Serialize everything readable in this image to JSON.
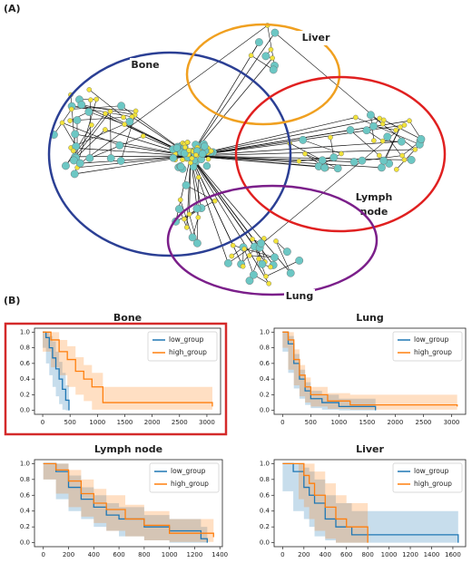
{
  "panel_labels": [
    "(A)",
    "(B)"
  ],
  "network": {
    "regions": [
      {
        "label": "Bone",
        "color": "#2b3f94"
      },
      {
        "label": "Liver",
        "color": "#f0a020"
      },
      {
        "label": [
          "Lymph",
          "node"
        ],
        "color": "#e02020"
      },
      {
        "label": "Lung",
        "color": "#7b1f8a"
      }
    ]
  },
  "chart_data": [
    {
      "type": "line",
      "title": "Bone",
      "highlight": true,
      "legend": "upper right",
      "xlim": [
        -150,
        3250
      ],
      "xticks": [
        0,
        500,
        1000,
        1500,
        2000,
        2500,
        3000
      ],
      "ylim": [
        -0.05,
        1.05
      ],
      "yticks": [
        {
          "value": 0,
          "label": "0.0"
        },
        0.2,
        0.4,
        0.6,
        0.8,
        {
          "value": 1,
          "label": "1.0"
        }
      ],
      "series": [
        {
          "name": "low_group",
          "color": "#1f77b4",
          "x": [
            0,
            60,
            120,
            180,
            240,
            300,
            360,
            420,
            480
          ],
          "values": [
            1,
            0.93,
            0.8,
            0.67,
            0.53,
            0.4,
            0.27,
            0.13,
            0
          ],
          "lower": [
            1,
            0.8,
            0.6,
            0.45,
            0.3,
            0.18,
            0.08,
            0.01,
            0
          ],
          "upper": [
            1,
            1,
            0.95,
            0.88,
            0.75,
            0.62,
            0.48,
            0.32,
            0.05
          ]
        },
        {
          "name": "high_group",
          "color": "#ff7f0e",
          "x": [
            0,
            150,
            300,
            450,
            600,
            750,
            900,
            1100,
            3100
          ],
          "values": [
            1,
            0.9,
            0.75,
            0.65,
            0.5,
            0.4,
            0.3,
            0.1,
            0.05
          ],
          "lower": [
            1,
            0.75,
            0.55,
            0.45,
            0.3,
            0.2,
            0.12,
            0.01,
            0.01
          ],
          "upper": [
            1,
            1,
            0.9,
            0.82,
            0.68,
            0.58,
            0.48,
            0.3,
            0.3
          ]
        }
      ]
    },
    {
      "type": "line",
      "title": "Lung",
      "highlight": false,
      "legend": "upper right",
      "xlim": [
        -150,
        3250
      ],
      "xticks": [
        0,
        500,
        1000,
        1500,
        2000,
        2500,
        3000
      ],
      "ylim": [
        -0.05,
        1.05
      ],
      "yticks": [
        {
          "value": 0,
          "label": "0.0"
        },
        0.2,
        0.4,
        0.6,
        0.8,
        {
          "value": 1,
          "label": "1.0"
        }
      ],
      "series": [
        {
          "name": "low_group",
          "color": "#1f77b4",
          "x": [
            0,
            100,
            200,
            300,
            400,
            500,
            700,
            1000,
            1650
          ],
          "values": [
            1,
            0.85,
            0.6,
            0.4,
            0.25,
            0.15,
            0.1,
            0.05,
            0
          ],
          "lower": [
            1,
            0.75,
            0.48,
            0.28,
            0.15,
            0.07,
            0.03,
            0.01,
            0
          ],
          "upper": [
            1,
            0.95,
            0.72,
            0.52,
            0.36,
            0.25,
            0.2,
            0.15,
            0.15
          ]
        },
        {
          "name": "high_group",
          "color": "#ff7f0e",
          "x": [
            0,
            100,
            200,
            300,
            400,
            500,
            800,
            1200,
            3100
          ],
          "values": [
            1,
            0.9,
            0.65,
            0.45,
            0.3,
            0.2,
            0.12,
            0.07,
            0.05
          ],
          "lower": [
            1,
            0.8,
            0.52,
            0.32,
            0.18,
            0.1,
            0.05,
            0.02,
            0.01
          ],
          "upper": [
            1,
            1,
            0.78,
            0.58,
            0.42,
            0.3,
            0.22,
            0.2,
            0.2
          ]
        }
      ]
    },
    {
      "type": "line",
      "title": "Lymph node",
      "highlight": false,
      "legend": "upper right",
      "xlim": [
        -70,
        1420
      ],
      "xticks": [
        0,
        200,
        400,
        600,
        800,
        1000,
        1200,
        1400
      ],
      "ylim": [
        -0.05,
        1.05
      ],
      "yticks": [
        {
          "value": 0,
          "label": "0.0"
        },
        0.2,
        0.4,
        0.6,
        0.8,
        {
          "value": 1,
          "label": "1.0"
        }
      ],
      "series": [
        {
          "name": "low_group",
          "color": "#1f77b4",
          "x": [
            0,
            100,
            200,
            300,
            400,
            500,
            600,
            800,
            1000,
            1250,
            1300
          ],
          "values": [
            1,
            0.9,
            0.7,
            0.55,
            0.45,
            0.35,
            0.3,
            0.2,
            0.15,
            0.05,
            0
          ],
          "lower": [
            1,
            0.8,
            0.55,
            0.4,
            0.3,
            0.2,
            0.15,
            0.08,
            0.03,
            0,
            0
          ],
          "upper": [
            1,
            1,
            0.85,
            0.7,
            0.6,
            0.5,
            0.45,
            0.35,
            0.3,
            0.2,
            0.15
          ]
        },
        {
          "name": "high_group",
          "color": "#ff7f0e",
          "x": [
            0,
            100,
            200,
            300,
            400,
            500,
            650,
            800,
            1000,
            1350
          ],
          "values": [
            1,
            0.92,
            0.78,
            0.62,
            0.5,
            0.42,
            0.3,
            0.22,
            0.12,
            0.07
          ],
          "lower": [
            1,
            0.8,
            0.62,
            0.45,
            0.33,
            0.25,
            0.15,
            0.08,
            0.03,
            0.01
          ],
          "upper": [
            1,
            1,
            0.92,
            0.8,
            0.68,
            0.6,
            0.48,
            0.4,
            0.3,
            0.25
          ]
        }
      ]
    },
    {
      "type": "line",
      "title": "Liver",
      "highlight": false,
      "legend": "upper right",
      "xlim": [
        -80,
        1720
      ],
      "xticks": [
        0,
        200,
        400,
        600,
        800,
        1000,
        1200,
        1400,
        1600
      ],
      "ylim": [
        -0.05,
        1.05
      ],
      "yticks": [
        {
          "value": 0,
          "label": "0.0"
        },
        0.2,
        0.4,
        0.6,
        0.8,
        {
          "value": 1,
          "label": "1.0"
        }
      ],
      "series": [
        {
          "name": "low_group",
          "color": "#1f77b4",
          "x": [
            0,
            100,
            200,
            250,
            300,
            400,
            500,
            650,
            1650
          ],
          "values": [
            1,
            0.9,
            0.7,
            0.6,
            0.5,
            0.3,
            0.2,
            0.1,
            0
          ],
          "lower": [
            1,
            0.65,
            0.4,
            0.3,
            0.2,
            0.08,
            0.03,
            0,
            0
          ],
          "upper": [
            1,
            1,
            0.95,
            0.9,
            0.8,
            0.6,
            0.5,
            0.4,
            0.4
          ]
        },
        {
          "name": "high_group",
          "color": "#ff7f0e",
          "x": [
            0,
            150,
            200,
            250,
            300,
            400,
            500,
            600,
            800
          ],
          "values": [
            1,
            1,
            0.85,
            0.75,
            0.6,
            0.45,
            0.3,
            0.2,
            0
          ],
          "lower": [
            1,
            1,
            0.55,
            0.45,
            0.3,
            0.15,
            0.05,
            0,
            0
          ],
          "upper": [
            1,
            1,
            1,
            1,
            0.9,
            0.75,
            0.6,
            0.5,
            0.3
          ]
        }
      ]
    }
  ]
}
